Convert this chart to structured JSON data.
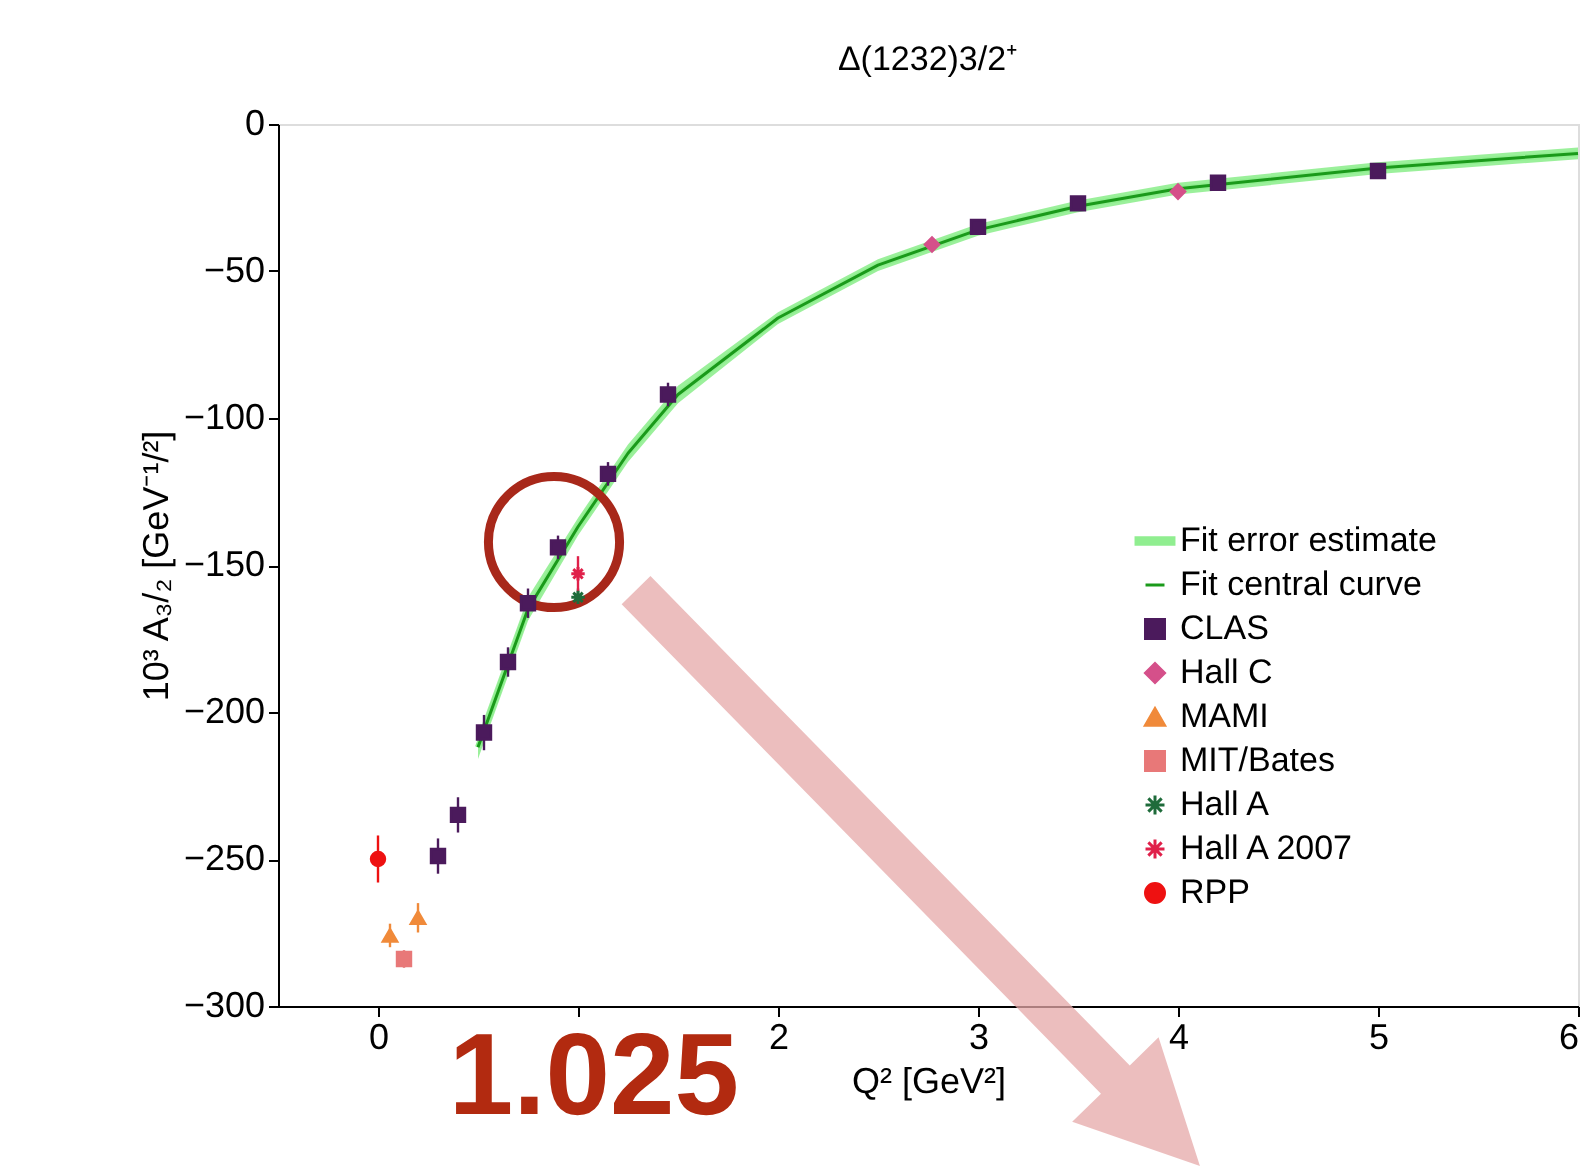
{
  "chart_data": {
    "type": "scatter",
    "title": "Δ(1232)3/2⁺",
    "xlabel": "Q² [GeV²]",
    "ylabel": "10³ A₃/₂ [GeV⁻¹/²]",
    "xlim": [
      -0.5,
      6
    ],
    "xticks": [
      0,
      {
        "value": 1,
        "label": null
      },
      2,
      3,
      4,
      5,
      6
    ],
    "ylim": [
      -300,
      0
    ],
    "yticks": [
      -300,
      -250,
      -200,
      -150,
      -100,
      -50,
      0
    ],
    "grid": false,
    "legend": "right",
    "annotations": [
      "1.025"
    ],
    "series": [
      {
        "name": "Fit error estimate",
        "type": "line",
        "color": "#90ee90",
        "x": [
          0.5,
          0.75,
          1.0,
          1.25,
          1.5,
          2,
          2.5,
          3,
          3.5,
          4,
          5,
          6
        ],
        "values": [
          -212,
          -165,
          -137,
          -112,
          -92,
          -66,
          -48,
          -36,
          -28,
          -22,
          -15,
          -10
        ],
        "lower": [
          -216,
          -169,
          -140,
          -115,
          -95,
          -68,
          -50,
          -38,
          -30,
          -24,
          -17,
          -12
        ],
        "upper": [
          -208,
          -161,
          -134,
          -109,
          -89,
          -64,
          -46,
          -34,
          -26,
          -20,
          -13,
          -8
        ]
      },
      {
        "name": "Fit central curve",
        "type": "line",
        "color": "#1a9a1a",
        "marker": "none",
        "x": [
          0.5,
          0.75,
          1.0,
          1.25,
          1.5,
          2,
          2.5,
          3,
          3.5,
          4,
          5,
          6
        ],
        "values": [
          -212,
          -165,
          -137,
          -112,
          -92,
          -66,
          -48,
          -36,
          -28,
          -22,
          -15,
          -10
        ]
      },
      {
        "name": "CLAS",
        "color": "#4b1a5c",
        "marker": "square",
        "x": [
          0.3,
          0.4,
          0.53,
          0.65,
          0.75,
          0.9,
          1.15,
          1.45,
          3.0,
          3.5,
          4.2,
          5.0
        ],
        "values": [
          -249,
          -235,
          -207,
          -183,
          -163,
          -144,
          -119,
          -92,
          -35,
          -27,
          -20,
          -16
        ],
        "errors": [
          6,
          6,
          6,
          5,
          5,
          4,
          4,
          4,
          2,
          2,
          2,
          2
        ]
      },
      {
        "name": "Hall C",
        "color": "#d5508a",
        "marker": "diamond",
        "x": [
          2.77,
          4.0
        ],
        "values": [
          -41,
          -23
        ],
        "errors": [
          2,
          2
        ]
      },
      {
        "name": "MAMI",
        "color": "#f08a3a",
        "marker": "triangle",
        "x": [
          0.06,
          0.2
        ],
        "values": [
          -276,
          -270
        ],
        "errors": [
          4,
          5
        ]
      },
      {
        "name": "MIT/Bates",
        "color": "#e87878",
        "marker": "square",
        "x": [
          0.13
        ],
        "values": [
          -284
        ],
        "errors": [
          3
        ]
      },
      {
        "name": "Hall A",
        "color": "#1e6b3a",
        "marker": "cross",
        "x": [
          1.0
        ],
        "values": [
          -161
        ],
        "errors": [
          3
        ]
      },
      {
        "name": "Hall A 2007",
        "color": "#e0204a",
        "marker": "cross",
        "x": [
          1.0
        ],
        "values": [
          -153
        ],
        "errors": [
          6
        ]
      },
      {
        "name": "RPP",
        "color": "#ee1111",
        "marker": "circle",
        "x": [
          0
        ],
        "values": [
          -250
        ],
        "errors": [
          8
        ]
      }
    ]
  }
}
